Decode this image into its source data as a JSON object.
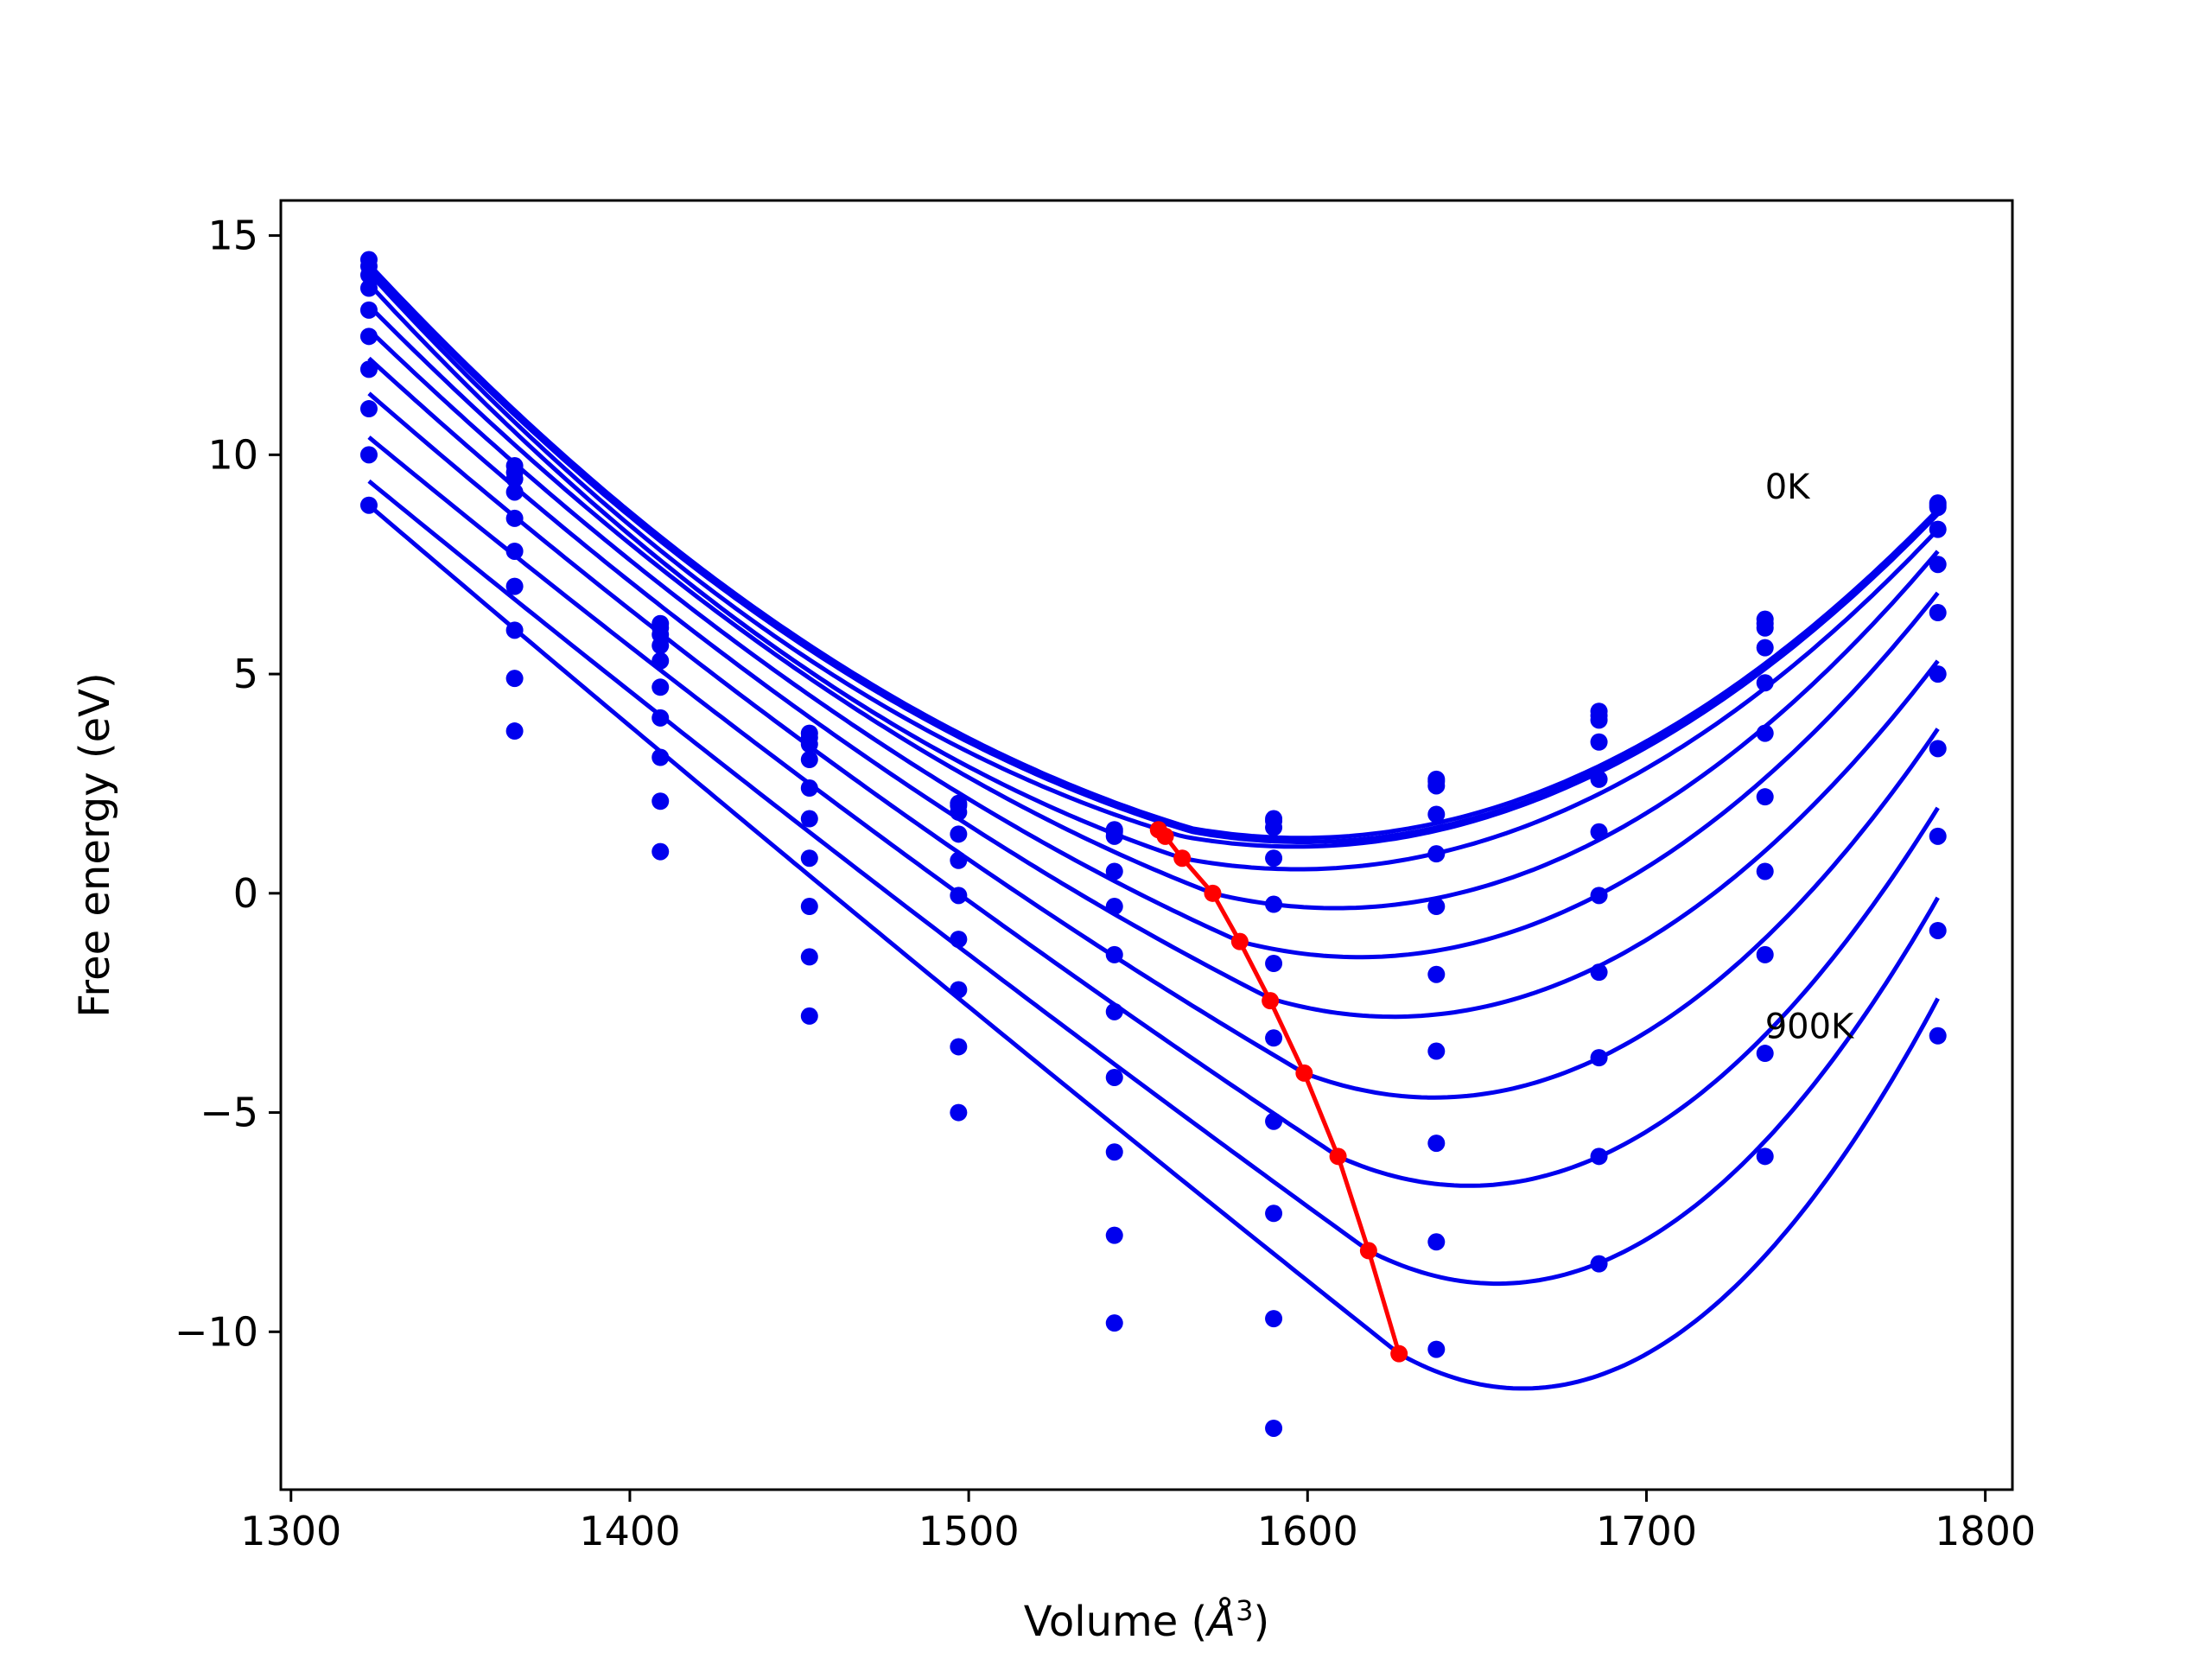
{
  "chart_data": {
    "type": "scatter",
    "xlabel_prefix": "Volume (",
    "xlabel_unit": "Å",
    "xlabel_sup": "3",
    "xlabel_suffix": ")",
    "ylabel": "Free energy (eV)",
    "xlim": [
      1297,
      1808
    ],
    "ylim": [
      -13.6,
      15.8
    ],
    "grid": false,
    "legend": "none",
    "xticks": [
      1300,
      1400,
      1500,
      1600,
      1700,
      1800
    ],
    "xtick_labels": [
      "1300",
      "1400",
      "1500",
      "1600",
      "1700",
      "1800"
    ],
    "yticks": [
      15,
      10,
      5,
      0,
      -5,
      -10
    ],
    "ytick_labels": [
      "15",
      "10",
      "5",
      "0",
      "−5",
      "−10"
    ],
    "annotations": [
      {
        "text": "0K",
        "x": 1735,
        "y": 9.0
      },
      {
        "text": "900K",
        "x": 1735,
        "y": -3.3
      }
    ],
    "colors": {
      "fit": "#0000ee",
      "points": "#0000ee",
      "minimum": "#ff0000"
    },
    "x": [
      1323,
      1366,
      1409,
      1453,
      1497,
      1543,
      1590,
      1638,
      1686,
      1735,
      1786
    ],
    "series": [
      {
        "values": [
          14.45,
          9.75,
          6.15,
          3.65,
          2.05,
          1.45,
          1.7,
          2.6,
          4.15,
          6.25,
          8.9
        ],
        "fit": {
          "vmin": 1566,
          "fmin": 1.48,
          "left": [
            14.35,
            6.1,
            2.05
          ],
          "right": [
            2.55,
            8.75
          ]
        }
      },
      {
        "values": [
          14.3,
          9.6,
          6.05,
          3.55,
          2.0,
          1.4,
          1.65,
          2.55,
          4.05,
          6.15,
          8.85
        ],
        "fit": {
          "vmin": 1566,
          "fmin": 1.4,
          "left": [
            14.25,
            6.0,
            1.95
          ],
          "right": [
            2.45,
            8.7
          ]
        }
      },
      {
        "values": [
          14.1,
          9.45,
          5.9,
          3.4,
          1.85,
          1.3,
          1.5,
          2.45,
          3.95,
          6.05,
          8.8
        ],
        "fit": {
          "vmin": 1563,
          "fmin": 1.3,
          "left": [
            14.15,
            5.85,
            1.75
          ],
          "right": [
            2.35,
            8.65
          ]
        }
      },
      {
        "values": [
          13.8,
          9.15,
          5.65,
          3.05,
          1.35,
          0.5,
          0.8,
          1.8,
          3.45,
          5.6,
          8.3
        ],
        "fit": {
          "vmin": 1563,
          "fmin": 0.8,
          "left": [
            13.9,
            5.6,
            1.35
          ],
          "right": [
            1.85,
            8.3
          ]
        }
      },
      {
        "values": [
          13.3,
          8.55,
          5.3,
          2.4,
          0.75,
          -0.3,
          -0.25,
          0.9,
          2.6,
          4.8,
          7.5
        ],
        "fit": {
          "vmin": 1572,
          "fmin": 0.0,
          "left": [
            13.4,
            5.2,
            0.8
          ],
          "right": [
            0.95,
            7.8
          ]
        }
      },
      {
        "values": [
          12.7,
          7.8,
          4.7,
          1.7,
          -0.05,
          -1.4,
          -1.6,
          -0.3,
          1.4,
          3.65,
          6.4
        ],
        "fit": {
          "vmin": 1580,
          "fmin": -1.1,
          "left": [
            12.85,
            4.6,
            0.0
          ],
          "right": [
            -0.15,
            6.85
          ]
        }
      },
      {
        "values": [
          11.95,
          7.0,
          4.0,
          0.8,
          -1.05,
          -2.7,
          -3.3,
          -1.85,
          -0.05,
          2.2,
          5.0
        ],
        "fit": {
          "vmin": 1589,
          "fmin": -2.4,
          "left": [
            12.2,
            3.85,
            -1.0
          ],
          "right": [
            -1.6,
            5.3
          ]
        }
      },
      {
        "values": [
          11.05,
          6.0,
          3.1,
          -0.3,
          -2.2,
          -4.2,
          -5.2,
          -3.6,
          -1.8,
          0.5,
          3.3
        ],
        "fit": {
          "vmin": 1599,
          "fmin": -4.1,
          "left": [
            11.4,
            2.9,
            -2.3
          ],
          "right": [
            -3.5,
            3.75
          ]
        }
      },
      {
        "values": [
          10.0,
          4.9,
          2.1,
          -1.45,
          -3.5,
          -5.9,
          -7.3,
          -5.7,
          -3.75,
          -1.4,
          1.3
        ],
        "fit": {
          "vmin": 1609,
          "fmin": -6.0,
          "left": [
            10.4,
            1.75,
            -3.9
          ],
          "right": [
            -5.55,
            1.95
          ]
        }
      },
      {
        "values": [
          8.85,
          3.7,
          0.95,
          -2.8,
          -5.0,
          -7.8,
          -9.7,
          -7.95,
          -6.0,
          -3.65,
          -0.85
        ],
        "fit": {
          "vmin": 1618,
          "fmin": -8.15,
          "left": [
            9.4,
            0.35,
            -5.75
          ],
          "right": [
            -7.8,
            -0.1
          ]
        }
      },
      {
        "values": [
          null,
          null,
          null,
          null,
          null,
          -9.8,
          -12.2,
          -10.4,
          -8.45,
          -6.0,
          -3.25
        ],
        "fit": {
          "vmin": 1627,
          "fmin": -10.5,
          "left": [
            8.85,
            -1.0,
            -7.6
          ],
          "right": [
            -10.2,
            -2.4
          ]
        }
      }
    ],
    "minimum_points": [
      {
        "x": 1556,
        "y": 1.45
      },
      {
        "x": 1558,
        "y": 1.3
      },
      {
        "x": 1563,
        "y": 0.8
      },
      {
        "x": 1572,
        "y": 0.0
      },
      {
        "x": 1580,
        "y": -1.1
      },
      {
        "x": 1589,
        "y": -2.45
      },
      {
        "x": 1599,
        "y": -4.1
      },
      {
        "x": 1609,
        "y": -6.0
      },
      {
        "x": 1618,
        "y": -8.15
      },
      {
        "x": 1627,
        "y": -10.5
      }
    ]
  }
}
